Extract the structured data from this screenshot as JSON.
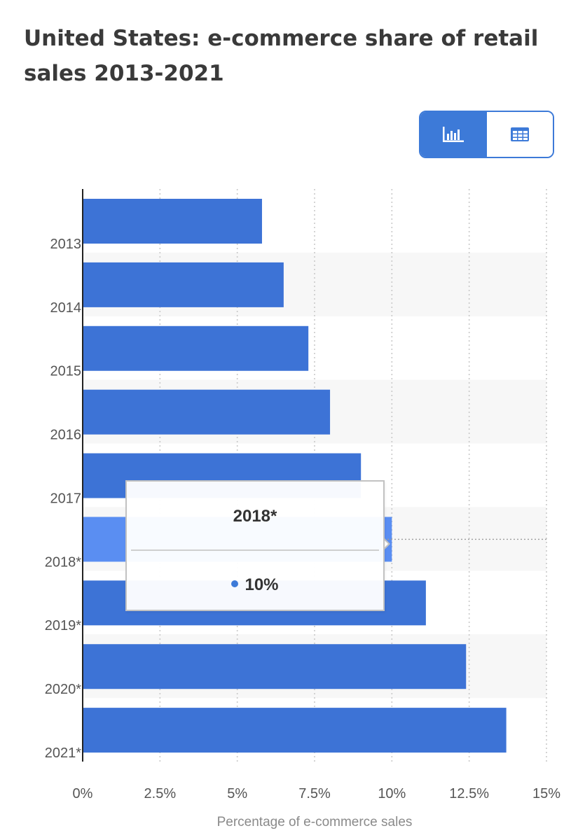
{
  "page": {
    "title": "United States: e-commerce share of retail sales 2013-2021"
  },
  "view_toggle": {
    "chart_icon": "bar-chart-icon",
    "table_icon": "table-icon",
    "active": "chart"
  },
  "tooltip": {
    "title": "2018*",
    "value_label": "10%"
  },
  "colors": {
    "bar": "#3d73d6",
    "bar_highlight": "#5a8ef2",
    "accent": "#3d7ad8",
    "band": "#f7f7f7"
  },
  "chart_data": {
    "type": "bar",
    "orientation": "horizontal",
    "title": "United States: e-commerce share of retail sales 2013-2021",
    "categories": [
      "2013",
      "2014",
      "2015",
      "2016",
      "2017",
      "2018*",
      "2019*",
      "2020*",
      "2021*"
    ],
    "values": [
      5.8,
      6.5,
      7.3,
      8.0,
      9.0,
      10.0,
      11.1,
      12.4,
      13.7
    ],
    "xlabel": "Percentage of e-commerce sales",
    "ylabel": "",
    "xlim": [
      0,
      15
    ],
    "x_ticks": [
      0,
      2.5,
      5,
      7.5,
      10,
      12.5,
      15
    ],
    "x_tick_labels": [
      "0%",
      "2.5%",
      "5%",
      "7.5%",
      "10%",
      "12.5%",
      "15%"
    ],
    "highlighted_category": "2018*",
    "grid": "vertical dotted",
    "legend": "none"
  }
}
